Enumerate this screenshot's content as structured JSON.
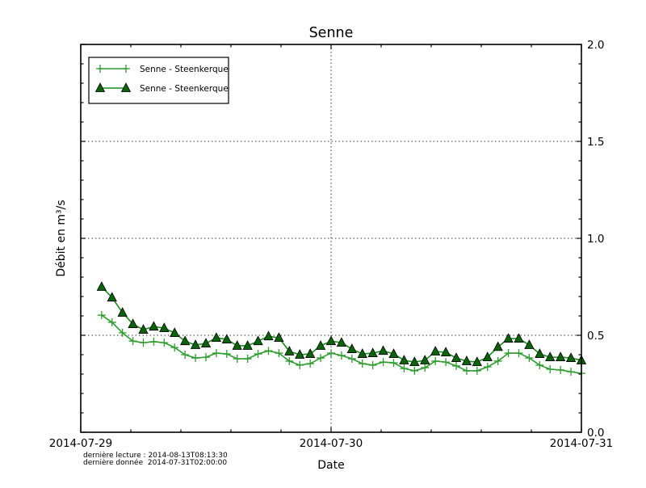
{
  "figure": {
    "title": "Senne",
    "xlabel": "Date",
    "ylabel": "Débit en m³/s",
    "annotations": {
      "last_reading": "dernière lecture : 2014-08-13T08:13:30",
      "last_data": "dernière donnée  2014-07-31T02:00:00"
    }
  },
  "chart_data": {
    "type": "line",
    "title": "Senne",
    "xlabel": "Date",
    "ylabel": "Débit en m³/s",
    "x_range": [
      "2014-07-29T00:00:00",
      "2014-07-31T00:00:00"
    ],
    "x_tick_labels": [
      "2014-07-29",
      "2014-07-30",
      "2014-07-31"
    ],
    "x_tick_hours": [
      0,
      24,
      48
    ],
    "y_tick_labels": [
      "0.0",
      "0.5",
      "1.0",
      "1.5",
      "2.0"
    ],
    "y_tick_values": [
      0.0,
      0.5,
      1.0,
      1.5,
      2.0
    ],
    "ylim": [
      0,
      2
    ],
    "grid": {
      "style": "dotted",
      "horizontal_values": [
        0.5,
        1.0,
        1.5
      ],
      "vertical_hours": [
        24
      ]
    },
    "legend_position": "upper-left",
    "sample_start": "2014-07-29T02:00:00",
    "sample_interval_hours": 1,
    "series": [
      {
        "name": "Senne - Steenkerque",
        "marker": "plus",
        "color": "#2e9b2e",
        "values": [
          0.604,
          0.567,
          0.513,
          0.47,
          0.462,
          0.467,
          0.462,
          0.437,
          0.4,
          0.383,
          0.387,
          0.408,
          0.404,
          0.379,
          0.379,
          0.404,
          0.42,
          0.408,
          0.367,
          0.346,
          0.354,
          0.383,
          0.408,
          0.396,
          0.379,
          0.354,
          0.346,
          0.362,
          0.358,
          0.329,
          0.317,
          0.333,
          0.367,
          0.362,
          0.342,
          0.317,
          0.317,
          0.337,
          0.367,
          0.408,
          0.408,
          0.383,
          0.346,
          0.325,
          0.321,
          0.312,
          0.304
        ]
      },
      {
        "name": "Senne - Steenkerque",
        "marker": "triangle",
        "color": "#1a8c1a",
        "marker_fill": "#0b630b",
        "marker_edge": "#000000",
        "values": [
          0.75,
          0.695,
          0.617,
          0.558,
          0.529,
          0.545,
          0.537,
          0.512,
          0.47,
          0.45,
          0.458,
          0.487,
          0.479,
          0.446,
          0.446,
          0.47,
          0.495,
          0.487,
          0.417,
          0.4,
          0.404,
          0.446,
          0.47,
          0.462,
          0.429,
          0.404,
          0.408,
          0.42,
          0.404,
          0.371,
          0.362,
          0.371,
          0.417,
          0.412,
          0.383,
          0.367,
          0.362,
          0.387,
          0.44,
          0.483,
          0.483,
          0.45,
          0.404,
          0.387,
          0.387,
          0.383,
          0.371
        ]
      }
    ]
  }
}
